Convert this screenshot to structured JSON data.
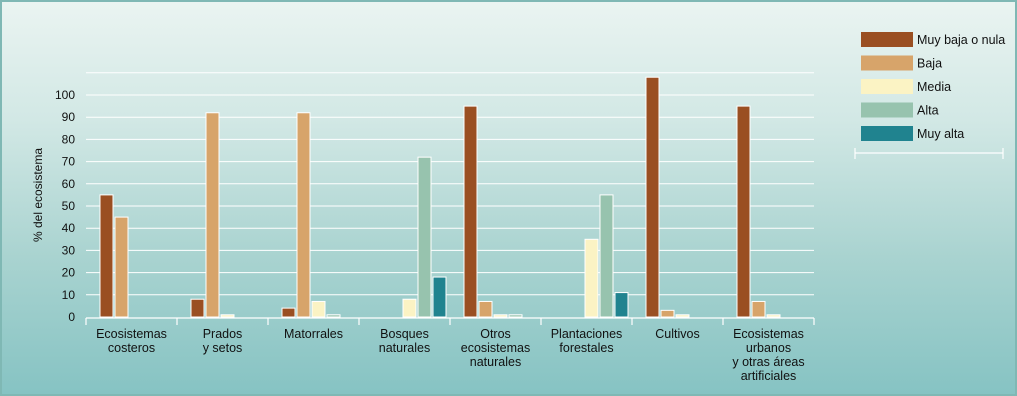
{
  "chart_data": {
    "type": "bar",
    "ylabel": "% del ecosistema",
    "yticks": [
      0,
      10,
      20,
      30,
      40,
      50,
      60,
      70,
      80,
      90,
      100
    ],
    "ylim": [
      0,
      110
    ],
    "grid": true,
    "legend_position": "top-right",
    "categories": [
      [
        "Ecosistemas",
        "costeros"
      ],
      [
        "Prados",
        "y setos"
      ],
      [
        "Matorrales"
      ],
      [
        "Bosques",
        "naturales"
      ],
      [
        "Otros",
        "ecosistemas",
        "naturales"
      ],
      [
        "Plantaciones",
        "forestales"
      ],
      [
        "Cultivos"
      ],
      [
        "Ecosistemas",
        "urbanos",
        "y otras áreas",
        "artificiales"
      ]
    ],
    "series": [
      {
        "name": "Muy baja o nula",
        "color": "#9a4f22",
        "values": [
          55,
          8,
          4,
          0,
          95,
          0,
          108,
          95
        ]
      },
      {
        "name": "Baja",
        "color": "#d7a46a",
        "values": [
          45,
          92,
          92,
          0,
          7,
          0,
          3,
          7
        ]
      },
      {
        "name": "Media",
        "color": "#fbf3c4",
        "values": [
          0,
          1,
          7,
          8,
          1,
          35,
          1,
          1
        ]
      },
      {
        "name": "Alta",
        "color": "#97c3ae",
        "values": [
          0,
          0,
          1,
          72,
          1,
          55,
          0,
          0
        ]
      },
      {
        "name": "Muy alta",
        "color": "#20838f",
        "values": [
          0,
          0,
          0,
          18,
          0,
          11,
          0,
          0
        ]
      }
    ]
  }
}
